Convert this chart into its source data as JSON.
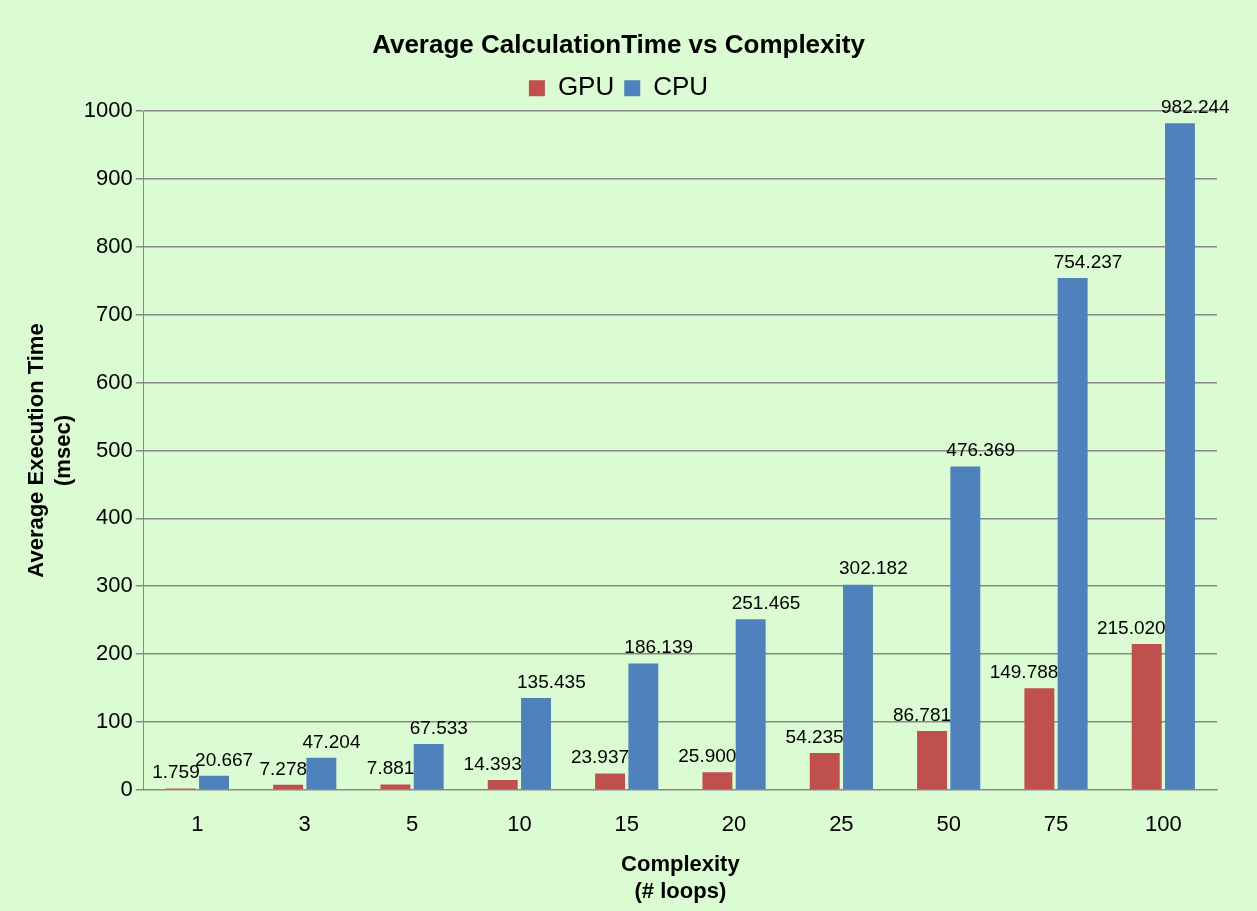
{
  "chart_data": {
    "type": "bar",
    "title": "Average CalculationTime vs Complexity",
    "xlabel": "Complexity\n(# loops)",
    "ylabel": "Average Execution Time\n(msec)",
    "categories": [
      "1",
      "3",
      "5",
      "10",
      "15",
      "20",
      "25",
      "50",
      "75",
      "100"
    ],
    "series": [
      {
        "name": "GPU",
        "color": "#c0504d",
        "values": [
          1.759,
          7.278,
          7.881,
          14.393,
          23.937,
          25.9,
          54.235,
          86.781,
          149.788,
          215.02
        ],
        "value_labels": [
          "1.759",
          "7.278",
          "7.881",
          "14.393",
          "23.937",
          "25.900",
          "54.235",
          "86.781",
          "149.788",
          "215.020"
        ]
      },
      {
        "name": "CPU",
        "color": "#4f81bd",
        "values": [
          20.667,
          47.204,
          67.533,
          135.435,
          186.139,
          251.465,
          302.182,
          476.369,
          754.237,
          982.244
        ],
        "value_labels": [
          "20.667",
          "47.204",
          "67.533",
          "135.435",
          "186.139",
          "251.465",
          "302.182",
          "476.369",
          "754.237",
          "982.244"
        ]
      }
    ],
    "ylim": [
      0,
      1000
    ],
    "yticks": [
      0,
      100,
      200,
      300,
      400,
      500,
      600,
      700,
      800,
      900,
      1000
    ],
    "grid": "y",
    "legend": "top"
  }
}
